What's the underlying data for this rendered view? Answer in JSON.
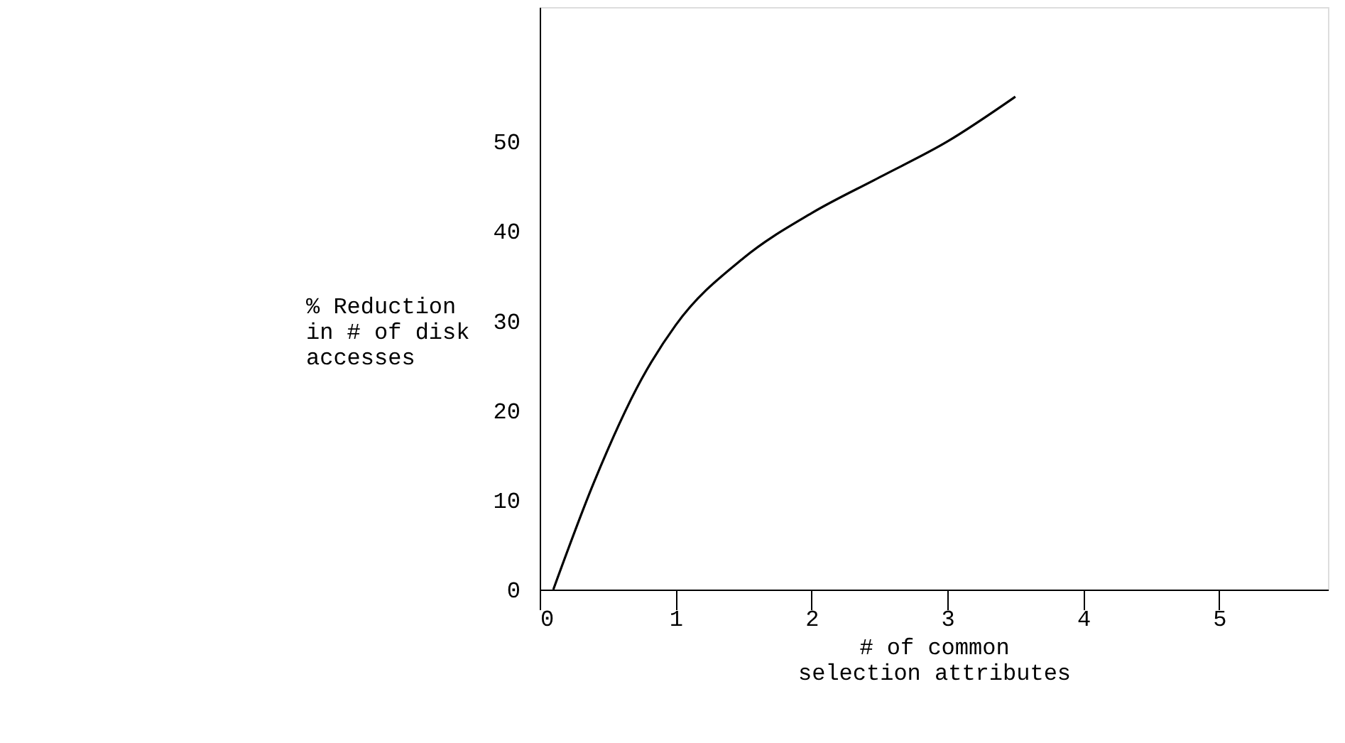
{
  "chart_data": {
    "type": "line",
    "xlabel": "# of common selection attributes",
    "ylabel": "% Reduction in # of disk accesses",
    "x": [
      0.1,
      0.4,
      0.75,
      1,
      1.5,
      2,
      2.5,
      3,
      3.5
    ],
    "series": [
      {
        "color": "#000000",
        "values": [
          0,
          12,
          23.5,
          29.5,
          37,
          42,
          46,
          50,
          55
        ]
      }
    ],
    "xlim": [
      0,
      5.8
    ],
    "xticks": [
      0,
      1,
      2,
      3,
      4,
      5
    ],
    "ylim": [
      0,
      65
    ],
    "yticks": [
      0,
      10,
      20,
      30,
      40,
      50
    ],
    "grid": false,
    "legend": false,
    "marker": "none",
    "line_style": "solid"
  }
}
